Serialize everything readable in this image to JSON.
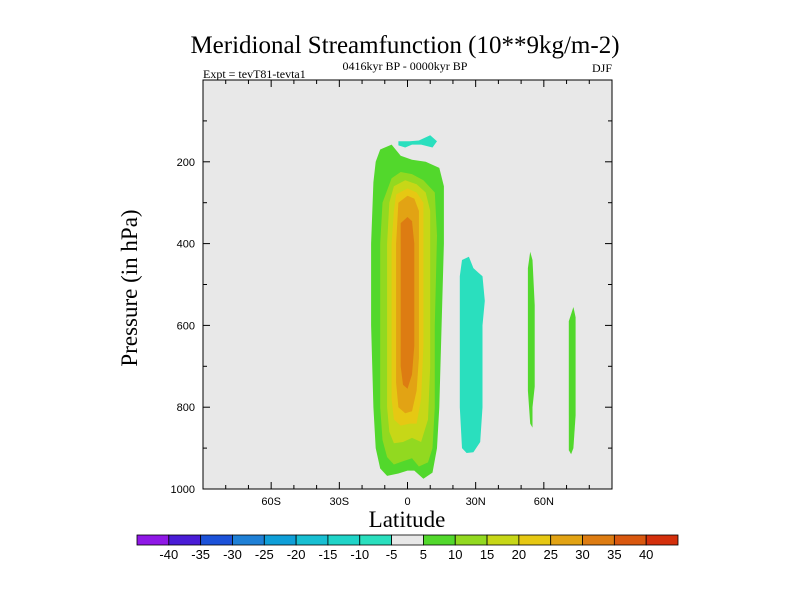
{
  "chart_data": {
    "type": "contour",
    "title": "Meridional Streamfunction (10**9kg/m-2)",
    "left_label": "Expt = tevT81-tevta1",
    "center_label": "0416kyr BP - 0000kyr BP",
    "right_label": "DJF",
    "xlabel": "Latitude",
    "ylabel": "Pressure (in hPa)",
    "xlim": [
      -90,
      90
    ],
    "ylim": [
      1000,
      0
    ],
    "x_ticks": [
      {
        "value": -60,
        "label": "60S"
      },
      {
        "value": -30,
        "label": "30S"
      },
      {
        "value": 0,
        "label": "0"
      },
      {
        "value": 30,
        "label": "30N"
      },
      {
        "value": 60,
        "label": "60N"
      }
    ],
    "y_ticks": [
      {
        "value": 200,
        "label": "200"
      },
      {
        "value": 400,
        "label": "400"
      },
      {
        "value": 600,
        "label": "600"
      },
      {
        "value": 800,
        "label": "800"
      },
      {
        "value": 1000,
        "label": "1000"
      }
    ],
    "colorbar": {
      "labels": [
        "-40",
        "-35",
        "-30",
        "-25",
        "-20",
        "-15",
        "-10",
        "-5",
        "5",
        "10",
        "15",
        "20",
        "25",
        "30",
        "35",
        "40"
      ],
      "colors": [
        "#8f18e6",
        "#4a1cd6",
        "#1c52d9",
        "#1f80d6",
        "#0f9fd8",
        "#18bfd2",
        "#20d4c8",
        "#2adfbe",
        "#e8e8e8",
        "#52d82c",
        "#92d920",
        "#c7d717",
        "#e6c813",
        "#e2a314",
        "#dd7c12",
        "#d9580f",
        "#d4300c"
      ]
    },
    "regions": [
      {
        "name": "main-cell-outer",
        "level": "5",
        "color": "#52d82c",
        "points": [
          [
            -12,
            170
          ],
          [
            -7,
            158
          ],
          [
            -3,
            185
          ],
          [
            2,
            195
          ],
          [
            8,
            200
          ],
          [
            14,
            215
          ],
          [
            16,
            260
          ],
          [
            16,
            400
          ],
          [
            15,
            600
          ],
          [
            14,
            800
          ],
          [
            13,
            900
          ],
          [
            11,
            960
          ],
          [
            7,
            975
          ],
          [
            3,
            955
          ],
          [
            0,
            955
          ],
          [
            -4,
            962
          ],
          [
            -9,
            968
          ],
          [
            -12,
            950
          ],
          [
            -14,
            900
          ],
          [
            -15,
            800
          ],
          [
            -16,
            600
          ],
          [
            -16,
            400
          ],
          [
            -15,
            250
          ],
          [
            -14,
            200
          ]
        ]
      },
      {
        "name": "main-cell-10",
        "level": "10",
        "color": "#92d920",
        "points": [
          [
            -7,
            240
          ],
          [
            -3,
            225
          ],
          [
            2,
            230
          ],
          [
            7,
            245
          ],
          [
            12,
            275
          ],
          [
            13,
            380
          ],
          [
            12,
            600
          ],
          [
            12,
            800
          ],
          [
            11,
            900
          ],
          [
            9,
            935
          ],
          [
            5,
            945
          ],
          [
            2,
            925
          ],
          [
            -2,
            932
          ],
          [
            -6,
            940
          ],
          [
            -9,
            922
          ],
          [
            -11,
            880
          ],
          [
            -12,
            800
          ],
          [
            -12,
            600
          ],
          [
            -12,
            400
          ],
          [
            -11,
            300
          ]
        ]
      },
      {
        "name": "main-cell-15",
        "level": "15",
        "color": "#c7d717",
        "points": [
          [
            -6,
            260
          ],
          [
            -1,
            245
          ],
          [
            4,
            255
          ],
          [
            8,
            275
          ],
          [
            10,
            320
          ],
          [
            10,
            500
          ],
          [
            10,
            700
          ],
          [
            9,
            830
          ],
          [
            6,
            885
          ],
          [
            2,
            875
          ],
          [
            -2,
            885
          ],
          [
            -6,
            888
          ],
          [
            -8,
            860
          ],
          [
            -9,
            800
          ],
          [
            -9,
            600
          ],
          [
            -9,
            400
          ],
          [
            -8,
            300
          ]
        ]
      },
      {
        "name": "main-cell-20",
        "level": "20",
        "color": "#e6c813",
        "points": [
          [
            -5,
            280
          ],
          [
            0,
            265
          ],
          [
            4,
            275
          ],
          [
            7,
            300
          ],
          [
            7,
            450
          ],
          [
            7,
            650
          ],
          [
            6,
            780
          ],
          [
            4,
            840
          ],
          [
            1,
            840
          ],
          [
            -3,
            845
          ],
          [
            -6,
            830
          ],
          [
            -7,
            780
          ],
          [
            -7,
            600
          ],
          [
            -7,
            400
          ],
          [
            -6,
            320
          ]
        ]
      },
      {
        "name": "main-cell-25",
        "level": "25",
        "color": "#e2a314",
        "points": [
          [
            -4,
            300
          ],
          [
            0,
            283
          ],
          [
            3,
            290
          ],
          [
            5,
            320
          ],
          [
            5,
            500
          ],
          [
            5,
            680
          ],
          [
            4,
            760
          ],
          [
            2,
            810
          ],
          [
            -1,
            815
          ],
          [
            -4,
            800
          ],
          [
            -5,
            740
          ],
          [
            -5,
            550
          ],
          [
            -5,
            400
          ]
        ]
      },
      {
        "name": "main-cell-30",
        "level": "30",
        "color": "#dd7c12",
        "points": [
          [
            -3,
            350
          ],
          [
            0,
            335
          ],
          [
            2,
            345
          ],
          [
            3,
            400
          ],
          [
            3,
            550
          ],
          [
            3,
            650
          ],
          [
            2,
            720
          ],
          [
            0,
            755
          ],
          [
            -2,
            745
          ],
          [
            -3,
            700
          ],
          [
            -3,
            550
          ]
        ]
      },
      {
        "name": "upper-negative-blob",
        "level": "-5",
        "color": "#2adfbe",
        "points": [
          [
            -4,
            150
          ],
          [
            1,
            150
          ],
          [
            5,
            148
          ],
          [
            10,
            135
          ],
          [
            13,
            150
          ],
          [
            11,
            165
          ],
          [
            6,
            158
          ],
          [
            2,
            158
          ],
          [
            -1,
            165
          ],
          [
            -4,
            160
          ]
        ]
      },
      {
        "name": "neg-cell-30n",
        "level": "-5",
        "color": "#2adfbe",
        "points": [
          [
            24,
            440
          ],
          [
            27,
            432
          ],
          [
            29,
            460
          ],
          [
            31,
            470
          ],
          [
            33,
            480
          ],
          [
            34,
            540
          ],
          [
            33,
            600
          ],
          [
            33,
            700
          ],
          [
            33,
            800
          ],
          [
            32,
            885
          ],
          [
            29,
            910
          ],
          [
            26,
            912
          ],
          [
            24,
            900
          ],
          [
            23,
            800
          ],
          [
            23,
            650
          ],
          [
            23,
            550
          ],
          [
            23,
            480
          ]
        ]
      },
      {
        "name": "pos-cell-55n",
        "level": "5",
        "color": "#52d82c",
        "points": [
          [
            54,
            420
          ],
          [
            55,
            440
          ],
          [
            56,
            550
          ],
          [
            56,
            650
          ],
          [
            56,
            750
          ],
          [
            55,
            800
          ],
          [
            55,
            850
          ],
          [
            54,
            840
          ],
          [
            53,
            760
          ],
          [
            53,
            650
          ],
          [
            53,
            550
          ],
          [
            53,
            460
          ]
        ]
      },
      {
        "name": "pos-cell-72n",
        "level": "5",
        "color": "#52d82c",
        "points": [
          [
            73,
            555
          ],
          [
            74,
            580
          ],
          [
            74,
            700
          ],
          [
            74,
            820
          ],
          [
            73,
            900
          ],
          [
            72,
            915
          ],
          [
            71,
            905
          ],
          [
            71,
            800
          ],
          [
            71,
            680
          ],
          [
            71,
            590
          ]
        ]
      }
    ]
  }
}
